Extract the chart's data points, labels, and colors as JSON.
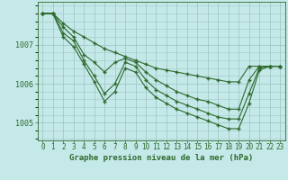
{
  "title": "Graphe pression niveau de la mer (hPa)",
  "background_color": "#c5e8e8",
  "grid_color": "#a0c8c8",
  "line_color": "#2d6a2d",
  "text_color": "#2d6a2d",
  "xlabel_fontsize": 5.5,
  "ylabel_fontsize": 6,
  "title_fontsize": 6.5,
  "x_labels": [
    "0",
    "1",
    "2",
    "3",
    "4",
    "5",
    "6",
    "7",
    "8",
    "9",
    "10",
    "11",
    "12",
    "13",
    "14",
    "15",
    "16",
    "17",
    "18",
    "19",
    "20",
    "21",
    "22",
    "23"
  ],
  "ylim": [
    1004.55,
    1008.1
  ],
  "yticks": [
    1005,
    1006,
    1007
  ],
  "series": [
    [
      1007.8,
      1007.8,
      1007.55,
      1007.35,
      1007.2,
      1007.05,
      1006.9,
      1006.8,
      1006.7,
      1006.6,
      1006.5,
      1006.4,
      1006.35,
      1006.3,
      1006.25,
      1006.2,
      1006.15,
      1006.1,
      1006.05,
      1006.05,
      1006.45,
      1006.45,
      1006.45,
      1006.45
    ],
    [
      1007.8,
      1007.8,
      1007.45,
      1007.2,
      1006.75,
      1006.55,
      1006.3,
      1006.55,
      1006.65,
      1006.55,
      1006.3,
      1006.1,
      1005.95,
      1005.8,
      1005.7,
      1005.6,
      1005.55,
      1005.45,
      1005.35,
      1005.35,
      1006.1,
      1006.45,
      1006.45,
      1006.45
    ],
    [
      1007.8,
      1007.8,
      1007.3,
      1007.1,
      1006.6,
      1006.2,
      1005.75,
      1006.0,
      1006.55,
      1006.45,
      1006.1,
      1005.85,
      1005.7,
      1005.55,
      1005.45,
      1005.35,
      1005.25,
      1005.15,
      1005.1,
      1005.1,
      1005.75,
      1006.4,
      1006.45,
      1006.45
    ],
    [
      1007.8,
      1007.8,
      1007.2,
      1006.95,
      1006.5,
      1006.05,
      1005.55,
      1005.8,
      1006.4,
      1006.3,
      1005.9,
      1005.65,
      1005.5,
      1005.35,
      1005.25,
      1005.15,
      1005.05,
      1004.95,
      1004.85,
      1004.85,
      1005.5,
      1006.35,
      1006.45,
      1006.45
    ]
  ]
}
